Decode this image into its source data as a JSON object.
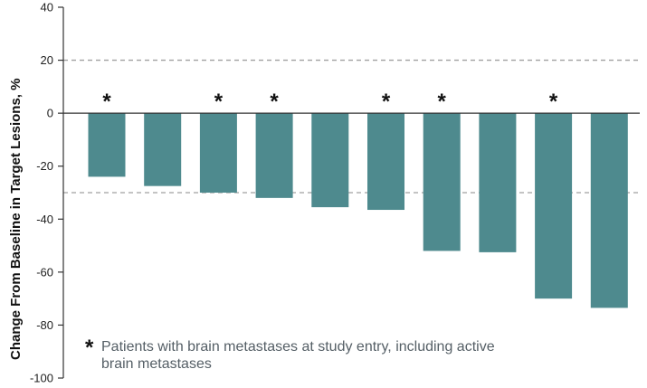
{
  "chart_data": {
    "type": "bar",
    "title": "",
    "xlabel": "",
    "ylabel": "Change From Baseline in Target Lesions, %",
    "ylim": [
      -100,
      40
    ],
    "yticks": [
      40,
      20,
      0,
      -20,
      -40,
      -60,
      -80,
      -100
    ],
    "reference_lines": [
      20,
      -30
    ],
    "bar_color": "#4e8a8e",
    "values": [
      -24,
      -27.5,
      -30,
      -32,
      -35.5,
      -36.5,
      -52,
      -52.5,
      -70,
      -73.5
    ],
    "brain_metastases": [
      true,
      false,
      true,
      true,
      false,
      true,
      true,
      false,
      true,
      false
    ],
    "marker_symbol": "*",
    "footnote": {
      "symbol": "*",
      "text": "Patients with brain metastases at study entry, including active brain metastases"
    }
  }
}
